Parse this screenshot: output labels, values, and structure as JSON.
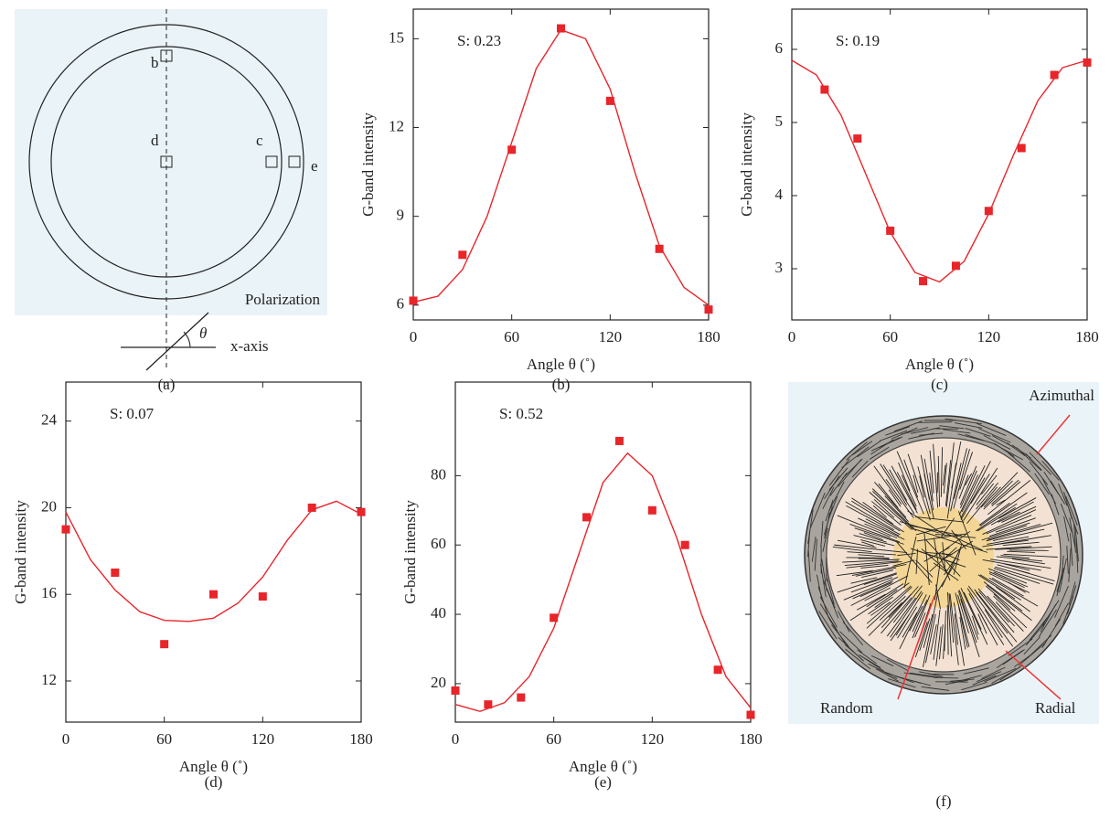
{
  "chart_data": [
    {
      "type": "scatter",
      "annotation": "S: 0.23",
      "x_label": "Angle θ (˚)",
      "y_label": "G-band intensity",
      "caption": "(b)",
      "color": "#e8252a",
      "x": [
        0,
        30,
        60,
        90,
        120,
        150,
        180
      ],
      "values": [
        6.15,
        7.7,
        11.25,
        15.35,
        12.9,
        7.9,
        5.85
      ],
      "fit": {
        "x": [
          0,
          15,
          30,
          45,
          60,
          75,
          90,
          105,
          120,
          135,
          150,
          165,
          180
        ],
        "values": [
          6.1,
          6.3,
          7.2,
          9.0,
          11.5,
          14.0,
          15.3,
          15.0,
          13.3,
          10.5,
          8.0,
          6.6,
          6.0
        ]
      },
      "xlim": [
        0,
        180
      ],
      "xticks": [
        0,
        60,
        120,
        180
      ],
      "ylim": [
        5.5,
        16.0
      ],
      "yticks": [
        6,
        9,
        12,
        15
      ]
    },
    {
      "type": "scatter",
      "annotation": "S: 0.19",
      "x_label": "Angle θ (˚)",
      "y_label": "G-band intensity",
      "caption": "(c)",
      "color": "#e8252a",
      "x": [
        20,
        40,
        60,
        80,
        100,
        120,
        140,
        160,
        180
      ],
      "values": [
        5.45,
        4.78,
        3.52,
        2.83,
        3.04,
        3.79,
        4.65,
        5.65,
        5.82
      ],
      "fit": {
        "x": [
          0,
          15,
          30,
          45,
          60,
          75,
          90,
          105,
          120,
          135,
          150,
          165,
          180
        ],
        "values": [
          5.85,
          5.65,
          5.1,
          4.3,
          3.5,
          2.95,
          2.82,
          3.1,
          3.75,
          4.55,
          5.3,
          5.75,
          5.85
        ]
      },
      "xlim": [
        0,
        180
      ],
      "xticks": [
        0,
        60,
        120,
        180
      ],
      "ylim": [
        2.3,
        6.55
      ],
      "yticks": [
        3,
        4,
        5,
        6
      ]
    },
    {
      "type": "scatter",
      "annotation": "S: 0.07",
      "x_label": "Angle θ (˚)",
      "y_label": "G-band intensity",
      "caption": "(d)",
      "color": "#e8252a",
      "x": [
        0,
        30,
        60,
        90,
        120,
        150,
        180
      ],
      "values": [
        19.0,
        17.0,
        13.7,
        16.0,
        15.9,
        20.0,
        19.8
      ],
      "fit": {
        "x": [
          0,
          15,
          30,
          45,
          60,
          75,
          90,
          105,
          120,
          135,
          150,
          165,
          180
        ],
        "values": [
          19.8,
          17.6,
          16.2,
          15.2,
          14.8,
          14.75,
          14.9,
          15.6,
          16.8,
          18.5,
          19.9,
          20.3,
          19.7
        ]
      },
      "xlim": [
        0,
        180
      ],
      "xticks": [
        0,
        60,
        120,
        180
      ],
      "ylim": [
        10.1,
        25.8
      ],
      "yticks": [
        12,
        16,
        20,
        24
      ]
    },
    {
      "type": "scatter",
      "annotation": "S: 0.52",
      "x_label": "Angle θ (˚)",
      "y_label": "G-band intensity",
      "caption": "(e)",
      "color": "#e8252a",
      "x": [
        0,
        20,
        40,
        60,
        80,
        100,
        120,
        140,
        160,
        180
      ],
      "values": [
        18,
        14,
        16,
        39,
        68,
        90,
        70,
        60,
        24,
        11
      ],
      "fit": {
        "x": [
          0,
          15,
          30,
          45,
          60,
          75,
          90,
          105,
          120,
          135,
          150,
          165,
          180
        ],
        "values": [
          14,
          12,
          14.5,
          22,
          36,
          57,
          78,
          86.5,
          80,
          62,
          40,
          22,
          13
        ]
      },
      "xlim": [
        0,
        180
      ],
      "xticks": [
        0,
        60,
        120,
        180
      ],
      "ylim": [
        8.9,
        107
      ],
      "yticks": [
        20,
        40,
        60,
        80
      ]
    }
  ],
  "diagram_a": {
    "labels": {
      "b": "b",
      "c": "c",
      "d": "d",
      "e": "e"
    },
    "polarization": "Polarization",
    "theta": "θ",
    "x_axis": "x-axis",
    "caption": "(a)"
  },
  "diagram_f": {
    "azimuthal": "Azimuthal",
    "random": "Random",
    "radial": "Radial",
    "caption": "(f)"
  }
}
